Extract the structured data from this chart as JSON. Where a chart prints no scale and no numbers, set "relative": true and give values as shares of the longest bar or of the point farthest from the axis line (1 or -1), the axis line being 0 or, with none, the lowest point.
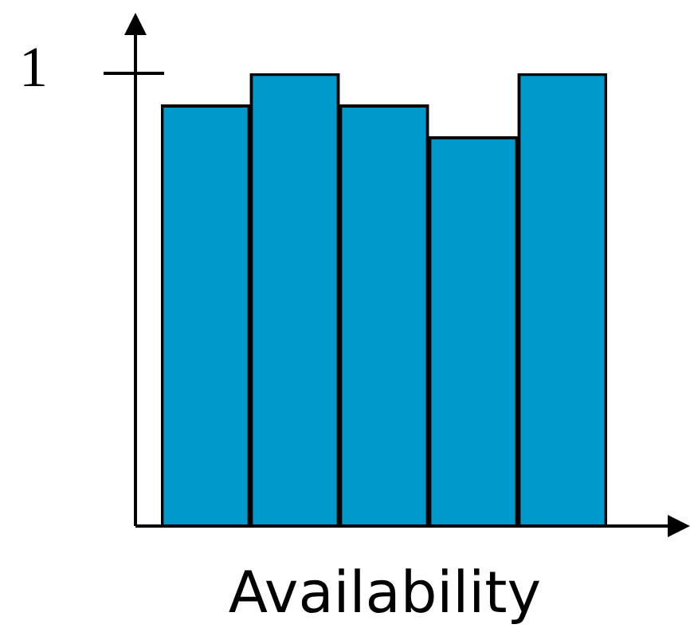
{
  "chart_data": {
    "type": "bar",
    "xlabel": "Availability",
    "relative": true,
    "categories": [
      null,
      null,
      null,
      null,
      null
    ],
    "values": [
      0.93,
      1,
      0.93,
      0.86,
      1
    ],
    "color": "#0099cc",
    "annotations": [
      "1"
    ],
    "legend": false
  }
}
